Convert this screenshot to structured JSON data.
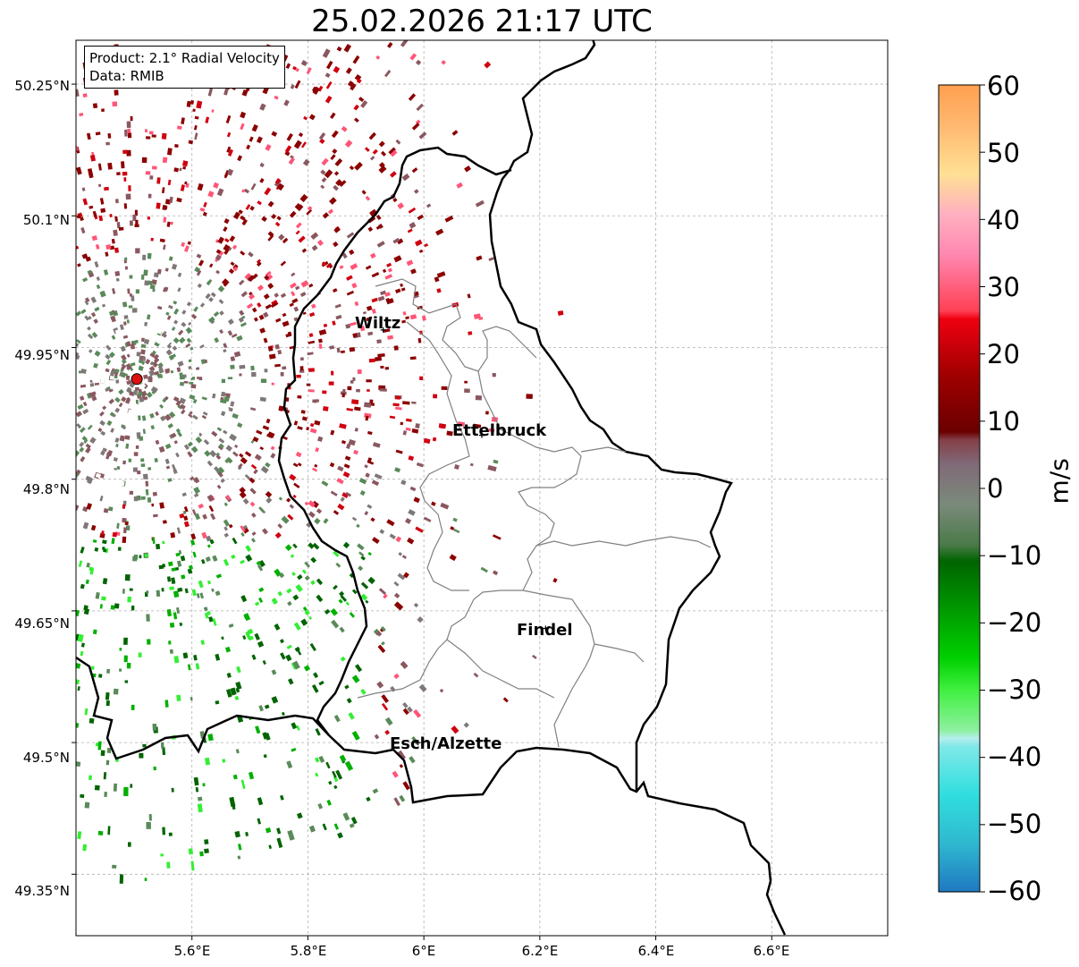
{
  "title": "25.02.2026 21:17 UTC",
  "infobox": {
    "product": "Product: 2.1° Radial Velocity",
    "data": "Data: RMIB"
  },
  "map": {
    "lon_range": [
      5.4,
      6.8
    ],
    "lat_range": [
      49.28,
      50.3
    ],
    "lat_ticks": [
      {
        "value": 50.25,
        "label": "50.25°N"
      },
      {
        "value": 50.1,
        "label": "50.1°N"
      },
      {
        "value": 49.95,
        "label": "49.95°N"
      },
      {
        "value": 49.8,
        "label": "49.8°N"
      },
      {
        "value": 49.65,
        "label": "49.65°N"
      },
      {
        "value": 49.5,
        "label": "49.5°N"
      },
      {
        "value": 49.35,
        "label": "49.35°N"
      }
    ],
    "lon_ticks": [
      {
        "value": 5.6,
        "label": "5.6°E"
      },
      {
        "value": 5.8,
        "label": "5.8°E"
      },
      {
        "value": 6.0,
        "label": "6°E"
      },
      {
        "value": 6.2,
        "label": "6.2°E"
      },
      {
        "value": 6.4,
        "label": "6.4°E"
      },
      {
        "value": 6.6,
        "label": "6.6°E"
      }
    ],
    "radar_site": {
      "lon": 5.505,
      "lat": 49.914
    },
    "cities": [
      {
        "name": "Wiltz",
        "lon": 5.93,
        "lat": 49.97
      },
      {
        "name": "Ettelbruck",
        "lon": 6.1,
        "lat": 49.85
      },
      {
        "name": "Findel",
        "lon": 6.21,
        "lat": 49.63
      },
      {
        "name": "Esch/Alzette",
        "lon": 5.99,
        "lat": 49.5
      }
    ]
  },
  "colorbar": {
    "label": "m/s",
    "min": -60,
    "max": 60,
    "ticks": [
      "60",
      "50",
      "40",
      "30",
      "20",
      "10",
      "0",
      "−10",
      "−20",
      "−30",
      "−40",
      "−50",
      "−60"
    ]
  },
  "colors": {
    "approaching_dark": "#006400",
    "approaching_mid": "#00b000",
    "approaching_light": "#33ee33",
    "neutral_green": "#5a8a5a",
    "neutral_gray": "#807878",
    "neutral_mauve": "#8a5860",
    "receding_dark": "#8b0000",
    "receding_red": "#d00010",
    "receding_pink": "#ff5577",
    "receding_orange": "#ffa050",
    "radar_site": "#dd1111"
  }
}
